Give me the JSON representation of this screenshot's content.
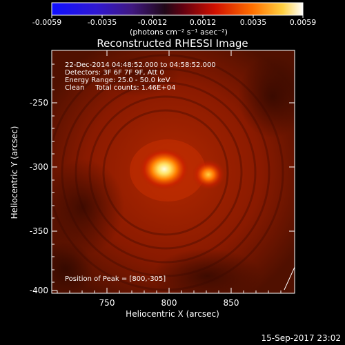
{
  "colorbar": {
    "tick_labels": [
      "-0.0059",
      "-0.0035",
      "-0.0012",
      "0.0012",
      "0.0035",
      "0.0059"
    ],
    "units": "(photons cm⁻² s⁻¹ asec⁻²)"
  },
  "title": "Reconstructed RHESSI Image",
  "info": {
    "time_range": "22-Dec-2014 04:48:52.000 to 04:58:52.000",
    "detectors": "Detectors: 3F 6F 7F 9F, Att 0",
    "energy": "Energy Range: 25.0 - 50.0 keV",
    "clean": "Clean     Total counts: 1.46E+04",
    "peak": "Position of Peak = [800,-305]"
  },
  "axes": {
    "xlabel": "Heliocentric X (arcsec)",
    "ylabel": "Heliocentric Y (arcsec)",
    "x_ticks": [
      "750",
      "800",
      "850"
    ],
    "y_ticks": [
      "-250",
      "-300",
      "-350",
      "-400"
    ]
  },
  "footer": {
    "timestamp": "15-Sep-2017 23:02"
  },
  "colors": {
    "background": "#000000",
    "map_base": "#8a1a00",
    "peak_core": "#ffffc0"
  }
}
